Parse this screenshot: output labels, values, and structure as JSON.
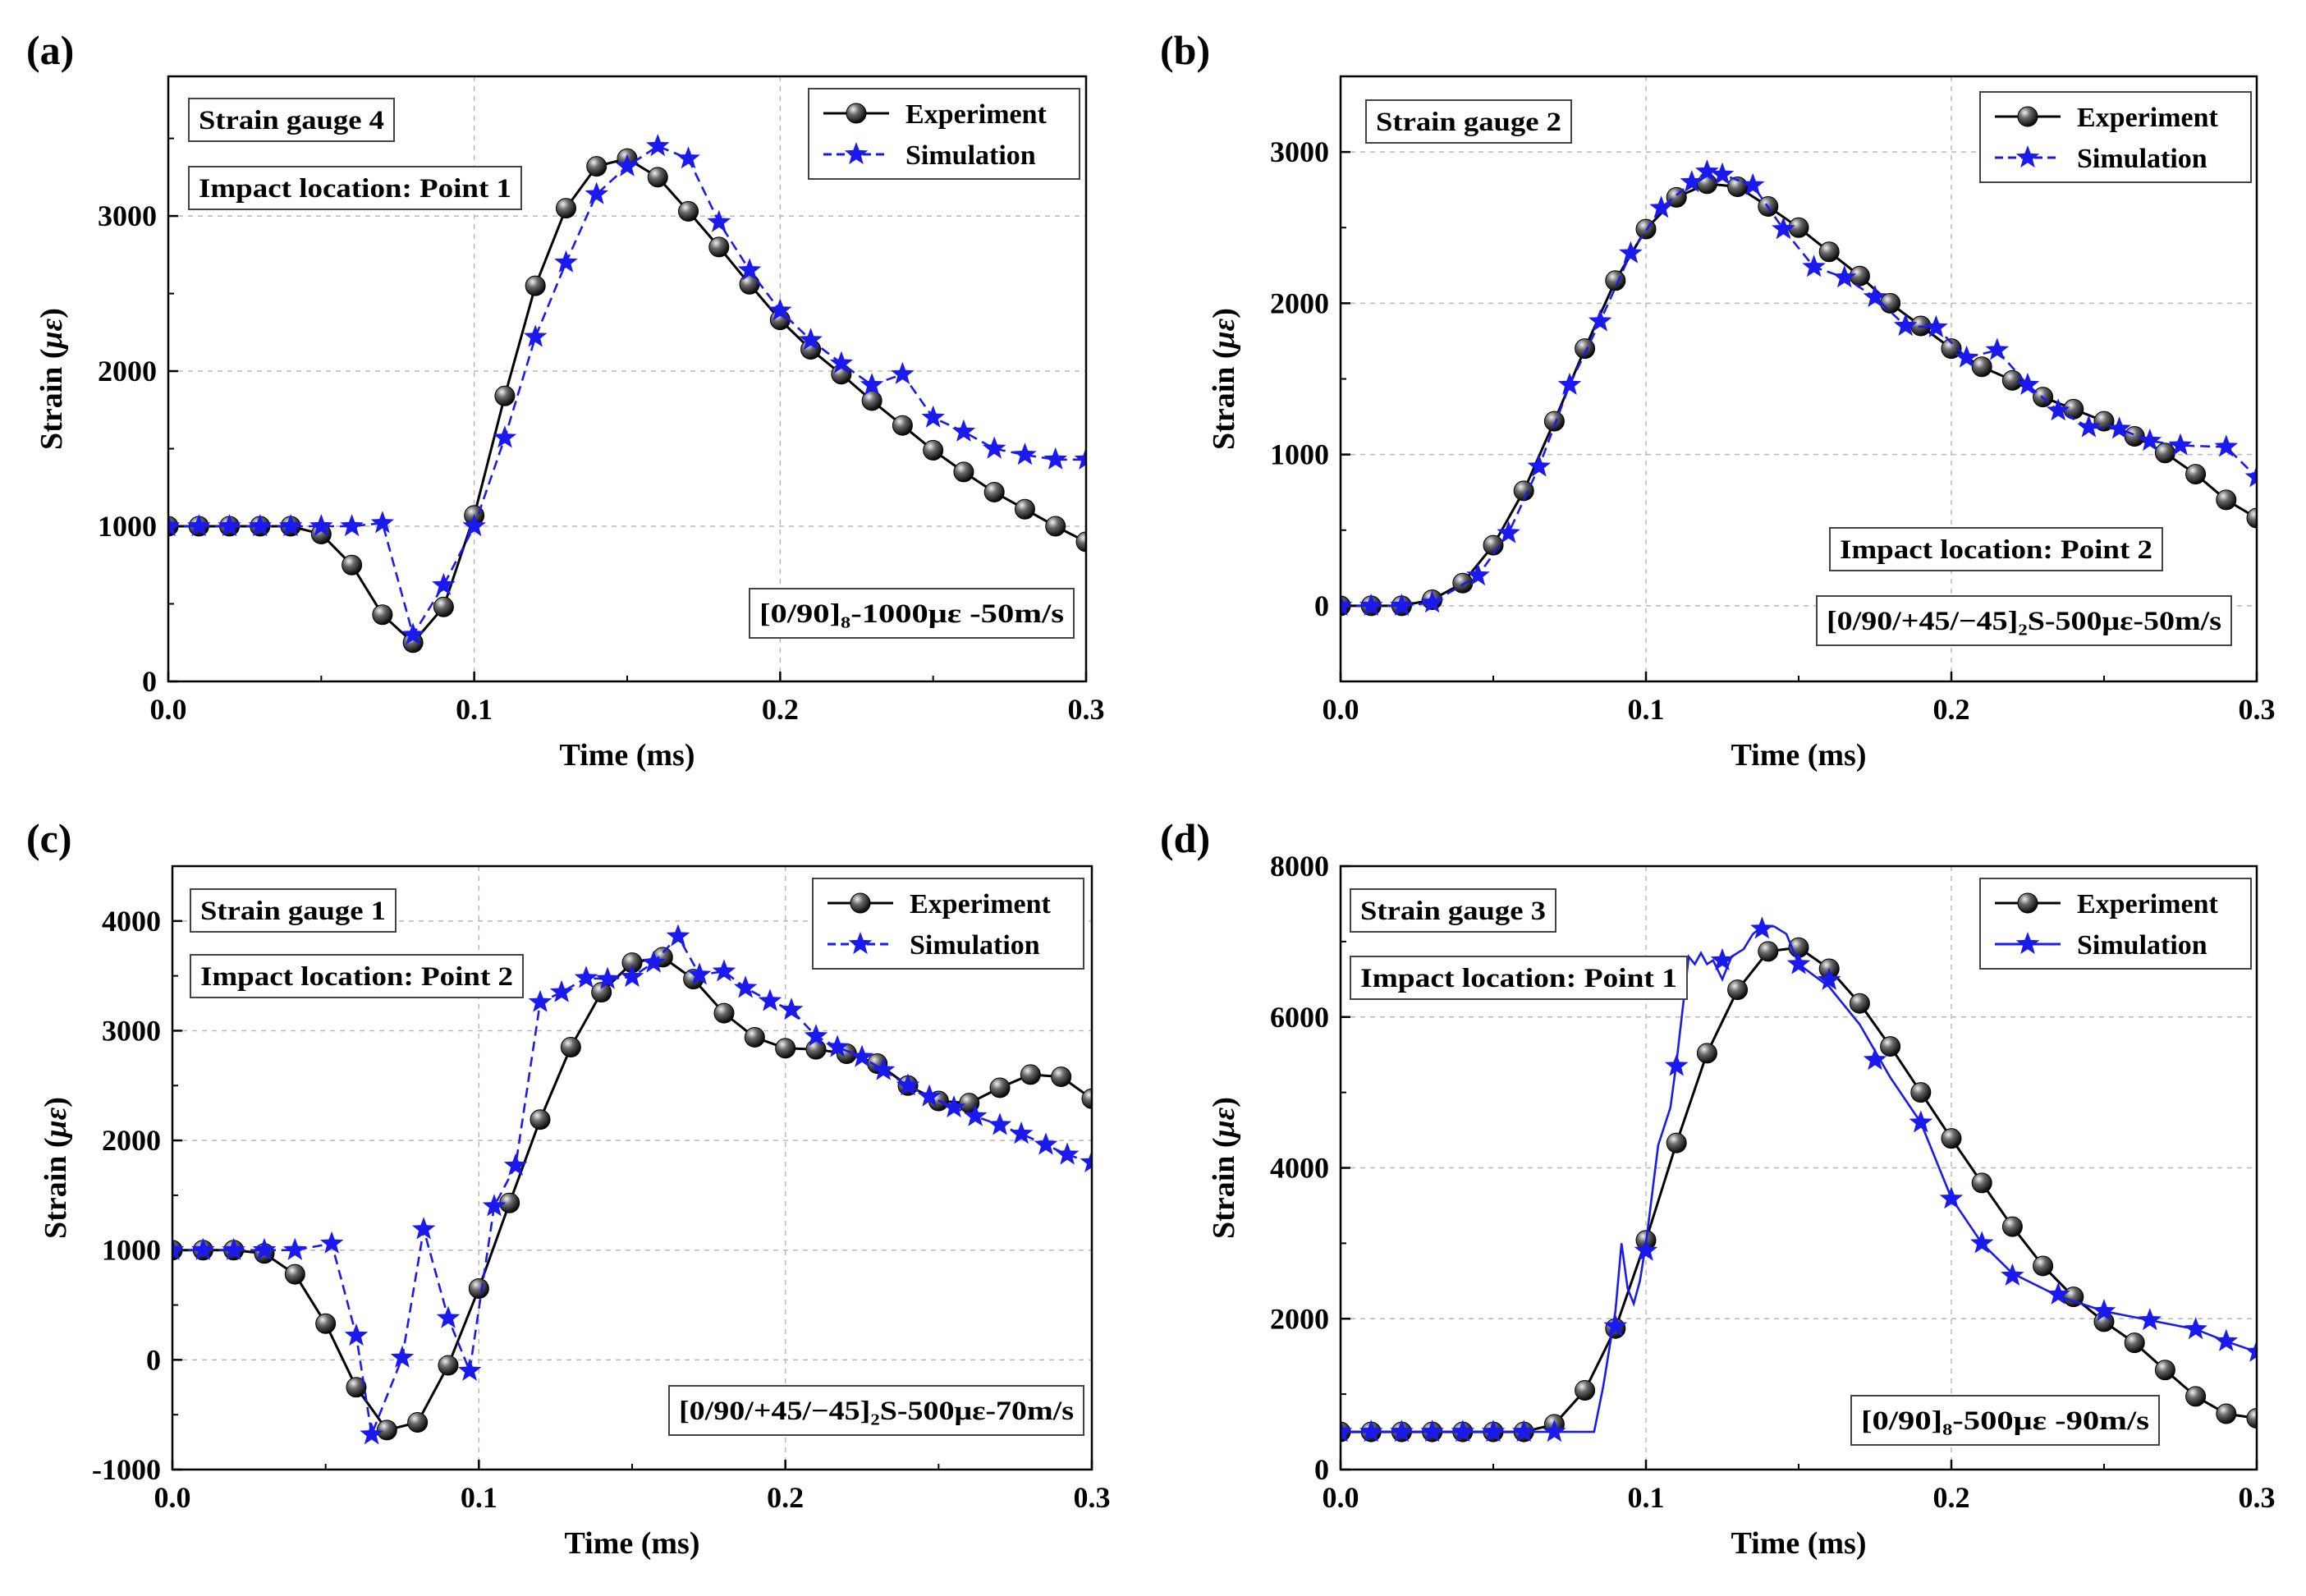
{
  "chart_data": [
    {
      "type": "line",
      "panel_label": "(a)",
      "xlabel": "Time (ms)",
      "ylabel_prefix": "Strain (",
      "ylabel_symbol": "με",
      "ylabel_suffix": ")",
      "xlim": [
        0.0,
        0.3
      ],
      "ylim": [
        0,
        3900
      ],
      "xticks": [
        0.0,
        0.1,
        0.2,
        0.3
      ],
      "xtick_labels": [
        "0.0",
        "0.1",
        "0.2",
        "0.3"
      ],
      "yticks": [
        0,
        1000,
        2000,
        3000
      ],
      "ytick_labels": [
        "0",
        "1000",
        "2000",
        "3000"
      ],
      "grid": true,
      "legend_position": "top-right",
      "annotations": [
        {
          "text": "Strain gauge 4",
          "position": "top-left"
        },
        {
          "text": "Impact location: Point 1",
          "position": "upper-left"
        },
        {
          "text": "[0/90]₈-1000με -50m/s",
          "position": "bottom-right"
        }
      ],
      "series": [
        {
          "name": "Experiment",
          "style": "solid-sphere",
          "x": [
            0.0,
            0.01,
            0.02,
            0.03,
            0.04,
            0.05,
            0.06,
            0.07,
            0.08,
            0.09,
            0.1,
            0.11,
            0.12,
            0.13,
            0.14,
            0.15,
            0.16,
            0.17,
            0.18,
            0.19,
            0.2,
            0.21,
            0.22,
            0.23,
            0.24,
            0.25,
            0.26,
            0.27,
            0.28,
            0.29,
            0.3
          ],
          "y": [
            1000,
            1000,
            1000,
            1000,
            1000,
            950,
            750,
            430,
            250,
            480,
            1070,
            1840,
            2550,
            3050,
            3320,
            3370,
            3250,
            3030,
            2800,
            2560,
            2330,
            2140,
            1980,
            1810,
            1650,
            1490,
            1350,
            1220,
            1110,
            1000,
            900
          ]
        },
        {
          "name": "Simulation",
          "style": "dashed-star",
          "x": [
            0.0,
            0.01,
            0.02,
            0.03,
            0.04,
            0.05,
            0.06,
            0.07,
            0.08,
            0.09,
            0.1,
            0.11,
            0.12,
            0.13,
            0.14,
            0.15,
            0.16,
            0.17,
            0.18,
            0.19,
            0.2,
            0.21,
            0.22,
            0.23,
            0.24,
            0.25,
            0.26,
            0.27,
            0.28,
            0.29,
            0.3
          ],
          "y": [
            1000,
            1000,
            1000,
            1000,
            1000,
            1000,
            1000,
            1020,
            300,
            620,
            1000,
            1570,
            2220,
            2700,
            3140,
            3320,
            3450,
            3370,
            2960,
            2650,
            2390,
            2200,
            2050,
            1910,
            1980,
            1700,
            1610,
            1500,
            1460,
            1430,
            1430
          ]
        }
      ]
    },
    {
      "type": "line",
      "panel_label": "(b)",
      "xlabel": "Time (ms)",
      "ylabel_prefix": "Strain (",
      "ylabel_symbol": "με",
      "ylabel_suffix": ")",
      "xlim": [
        0.0,
        0.3
      ],
      "ylim": [
        -500,
        3500
      ],
      "xticks": [
        0.0,
        0.1,
        0.2,
        0.3
      ],
      "xtick_labels": [
        "0.0",
        "0.1",
        "0.2",
        "0.3"
      ],
      "yticks": [
        0,
        1000,
        2000,
        3000
      ],
      "ytick_labels": [
        "0",
        "1000",
        "2000",
        "3000"
      ],
      "grid": true,
      "legend_position": "top-right",
      "annotations": [
        {
          "text": "Strain gauge 2",
          "position": "top-left"
        },
        {
          "text": "Impact location: Point 2",
          "position": "lower-right"
        },
        {
          "text": "[0/90/+45/−45]₂S-500με-50m/s",
          "position": "bottom-right"
        }
      ],
      "series": [
        {
          "name": "Experiment",
          "style": "solid-sphere",
          "x": [
            0.0,
            0.01,
            0.02,
            0.03,
            0.04,
            0.05,
            0.06,
            0.07,
            0.08,
            0.09,
            0.1,
            0.11,
            0.12,
            0.13,
            0.14,
            0.15,
            0.16,
            0.17,
            0.18,
            0.19,
            0.2,
            0.21,
            0.22,
            0.23,
            0.24,
            0.25,
            0.26,
            0.27,
            0.28,
            0.29,
            0.3
          ],
          "y": [
            0,
            0,
            0,
            40,
            150,
            400,
            760,
            1220,
            1700,
            2150,
            2490,
            2700,
            2790,
            2770,
            2640,
            2500,
            2340,
            2180,
            2000,
            1850,
            1700,
            1580,
            1490,
            1380,
            1300,
            1220,
            1120,
            1010,
            870,
            700,
            580
          ]
        },
        {
          "name": "Simulation",
          "style": "dashed-star",
          "x": [
            0.0,
            0.01,
            0.02,
            0.03,
            0.045,
            0.055,
            0.065,
            0.075,
            0.085,
            0.095,
            0.105,
            0.115,
            0.12,
            0.125,
            0.135,
            0.145,
            0.155,
            0.165,
            0.175,
            0.185,
            0.195,
            0.205,
            0.215,
            0.225,
            0.235,
            0.245,
            0.255,
            0.265,
            0.275,
            0.29,
            0.3
          ],
          "y": [
            0,
            0,
            0,
            20,
            200,
            480,
            920,
            1460,
            1880,
            2330,
            2630,
            2800,
            2870,
            2850,
            2780,
            2490,
            2240,
            2170,
            2040,
            1850,
            1840,
            1640,
            1690,
            1460,
            1290,
            1180,
            1170,
            1090,
            1060,
            1050,
            850
          ]
        }
      ]
    },
    {
      "type": "line",
      "panel_label": "(c)",
      "xlabel": "Time (ms)",
      "ylabel_prefix": "Strain (",
      "ylabel_symbol": "με",
      "ylabel_suffix": ")",
      "xlim": [
        0.0,
        0.3
      ],
      "ylim": [
        -1000,
        4500
      ],
      "xticks": [
        0.0,
        0.1,
        0.2,
        0.3
      ],
      "xtick_labels": [
        "0.0",
        "0.1",
        "0.2",
        "0.3"
      ],
      "yticks": [
        -1000,
        0,
        1000,
        2000,
        3000,
        4000
      ],
      "ytick_labels": [
        "-1000",
        "0",
        "1000",
        "2000",
        "3000",
        "4000"
      ],
      "grid": true,
      "legend_position": "top-right",
      "annotations": [
        {
          "text": "Strain gauge 1",
          "position": "top-left"
        },
        {
          "text": "Impact location: Point 2",
          "position": "upper-left"
        },
        {
          "text": "[0/90/+45/−45]₂S-500με-70m/s",
          "position": "bottom-right"
        }
      ],
      "series": [
        {
          "name": "Experiment",
          "style": "solid-sphere",
          "x": [
            0.0,
            0.01,
            0.02,
            0.03,
            0.04,
            0.05,
            0.06,
            0.07,
            0.08,
            0.09,
            0.1,
            0.11,
            0.12,
            0.13,
            0.14,
            0.15,
            0.16,
            0.17,
            0.18,
            0.19,
            0.2,
            0.21,
            0.22,
            0.23,
            0.24,
            0.25,
            0.26,
            0.27,
            0.28,
            0.29,
            0.3
          ],
          "y": [
            1000,
            1000,
            1000,
            970,
            780,
            330,
            -250,
            -640,
            -570,
            -50,
            650,
            1430,
            2190,
            2850,
            3350,
            3620,
            3670,
            3470,
            3160,
            2940,
            2840,
            2830,
            2790,
            2700,
            2500,
            2360,
            2340,
            2480,
            2600,
            2580,
            2380
          ]
        },
        {
          "name": "Simulation",
          "style": "dashed-star",
          "x": [
            0.0,
            0.01,
            0.02,
            0.03,
            0.04,
            0.052,
            0.06,
            0.065,
            0.075,
            0.082,
            0.09,
            0.097,
            0.105,
            0.112,
            0.12,
            0.127,
            0.135,
            0.142,
            0.15,
            0.157,
            0.165,
            0.172,
            0.18,
            0.187,
            0.195,
            0.202,
            0.21,
            0.217,
            0.225,
            0.232,
            0.24,
            0.247,
            0.255,
            0.262,
            0.27,
            0.277,
            0.285,
            0.292,
            0.3
          ],
          "y": [
            1000,
            1000,
            1000,
            1000,
            1000,
            1060,
            220,
            -680,
            20,
            1190,
            380,
            -100,
            1400,
            1770,
            3260,
            3350,
            3480,
            3470,
            3490,
            3620,
            3860,
            3510,
            3540,
            3390,
            3270,
            3190,
            2950,
            2850,
            2760,
            2640,
            2500,
            2400,
            2300,
            2220,
            2140,
            2060,
            1960,
            1870,
            1800
          ]
        }
      ]
    },
    {
      "type": "line",
      "panel_label": "(d)",
      "xlabel": "Time (ms)",
      "ylabel_prefix": "Strain (",
      "ylabel_symbol": "με",
      "ylabel_suffix": ")",
      "xlim": [
        0.0,
        0.3
      ],
      "ylim": [
        0,
        8000
      ],
      "xticks": [
        0.0,
        0.1,
        0.2,
        0.3
      ],
      "xtick_labels": [
        "0.0",
        "0.1",
        "0.2",
        "0.3"
      ],
      "yticks": [
        0,
        2000,
        4000,
        6000,
        8000
      ],
      "ytick_labels": [
        "0",
        "2000",
        "4000",
        "6000",
        "8000"
      ],
      "grid": true,
      "legend_position": "top-right",
      "annotations": [
        {
          "text": "Strain gauge 3",
          "position": "top-left"
        },
        {
          "text": "Impact location: Point 1",
          "position": "upper-left"
        },
        {
          "text": "[0/90]₈-500με -90m/s",
          "position": "bottom-right"
        }
      ],
      "series": [
        {
          "name": "Experiment",
          "style": "solid-sphere",
          "x": [
            0.0,
            0.01,
            0.02,
            0.03,
            0.04,
            0.05,
            0.06,
            0.07,
            0.08,
            0.09,
            0.1,
            0.11,
            0.12,
            0.13,
            0.14,
            0.15,
            0.16,
            0.17,
            0.18,
            0.19,
            0.2,
            0.21,
            0.22,
            0.23,
            0.24,
            0.25,
            0.26,
            0.27,
            0.28,
            0.29,
            0.3
          ],
          "y": [
            500,
            500,
            500,
            500,
            500,
            500,
            500,
            600,
            1050,
            1870,
            3040,
            4330,
            5520,
            6360,
            6870,
            6920,
            6640,
            6180,
            5610,
            5000,
            4390,
            3800,
            3220,
            2700,
            2290,
            1960,
            1680,
            1320,
            970,
            740,
            680
          ]
        },
        {
          "name": "Simulation",
          "style": "solid-star",
          "markers_x": [
            0.0,
            0.01,
            0.02,
            0.03,
            0.04,
            0.05,
            0.06,
            0.07,
            0.09,
            0.1,
            0.11,
            0.125,
            0.138,
            0.15,
            0.16,
            0.175,
            0.19,
            0.2,
            0.21,
            0.22,
            0.235,
            0.25,
            0.265,
            0.28,
            0.29,
            0.3
          ],
          "markers_y": [
            500,
            500,
            500,
            500,
            500,
            500,
            500,
            500,
            1900,
            2900,
            5350,
            6750,
            7170,
            6700,
            6490,
            5430,
            4600,
            3590,
            3000,
            2570,
            2320,
            2100,
            1980,
            1860,
            1700,
            1560
          ],
          "line_x": [
            0.0,
            0.076,
            0.083,
            0.086,
            0.09,
            0.092,
            0.094,
            0.096,
            0.098,
            0.1,
            0.104,
            0.108,
            0.11,
            0.112,
            0.114,
            0.116,
            0.118,
            0.12,
            0.122,
            0.125,
            0.128,
            0.132,
            0.135,
            0.138,
            0.142,
            0.146,
            0.15,
            0.16,
            0.17,
            0.18,
            0.19,
            0.2,
            0.21,
            0.22,
            0.235,
            0.25,
            0.265,
            0.28,
            0.29,
            0.3
          ],
          "line_y": [
            500,
            500,
            500,
            1100,
            2100,
            3000,
            2400,
            2200,
            2500,
            3000,
            4300,
            4800,
            5400,
            6100,
            6800,
            6700,
            6850,
            6700,
            6750,
            6500,
            6800,
            6900,
            7100,
            7200,
            7200,
            7100,
            6700,
            6400,
            5900,
            5200,
            4600,
            3600,
            3000,
            2600,
            2300,
            2100,
            1980,
            1860,
            1700,
            1560
          ]
        }
      ]
    }
  ]
}
